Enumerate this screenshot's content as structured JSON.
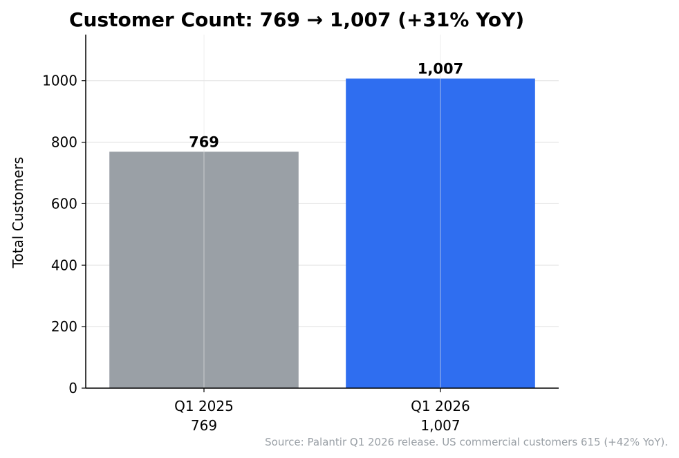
{
  "chart_data": {
    "type": "bar",
    "title": "Customer Count: 769 → 1,007 (+31% YoY)",
    "ylabel": "Total Customers",
    "xlabel": "",
    "categories": [
      "Q1 2025",
      "Q1 2026"
    ],
    "category_sublabels": [
      "769",
      "1,007"
    ],
    "values": [
      769,
      1007
    ],
    "data_labels": [
      "769",
      "1,007"
    ],
    "bar_colors": [
      "#9aa0a6",
      "#2f6ef0"
    ],
    "ylim": [
      0,
      1150
    ],
    "yticks": [
      0,
      200,
      400,
      600,
      800,
      1000
    ],
    "grid": true,
    "source_note": "Source: Palantir Q1 2026 release. US commercial customers 615 (+42% YoY)."
  }
}
